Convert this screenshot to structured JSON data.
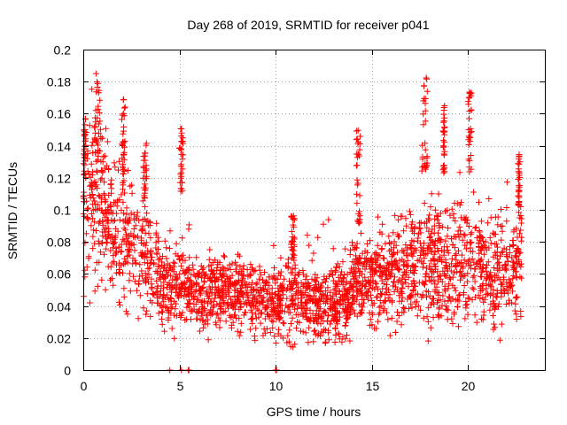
{
  "chart_data": {
    "type": "scatter",
    "title": "Day 268 of 2019, SRMTID for receiver p041",
    "xlabel": "GPS time / hours",
    "ylabel": "SRMTID / TECUs",
    "xlim": [
      0,
      24
    ],
    "ylim": [
      0,
      0.2
    ],
    "x_ticks": [
      0,
      5,
      10,
      15,
      20
    ],
    "x_tick_labels": [
      "0",
      "5",
      "10",
      "15",
      "20"
    ],
    "y_ticks": [
      0,
      0.02,
      0.04,
      0.06,
      0.08,
      0.1,
      0.12,
      0.14,
      0.16,
      0.18,
      0.2
    ],
    "y_tick_labels": [
      "0",
      "0.02",
      "0.04",
      "0.06",
      "0.08",
      "0.1",
      "0.12",
      "0.14",
      "0.16",
      "0.18",
      "0.2"
    ],
    "grid": true,
    "marker": "+",
    "color": "#ff0000",
    "trend": [
      {
        "t": 0.0,
        "mean": 0.1,
        "sd": 0.024
      },
      {
        "t": 0.5,
        "mean": 0.11,
        "sd": 0.024
      },
      {
        "t": 1.0,
        "mean": 0.1,
        "sd": 0.022
      },
      {
        "t": 1.5,
        "mean": 0.09,
        "sd": 0.02
      },
      {
        "t": 2.0,
        "mean": 0.085,
        "sd": 0.02
      },
      {
        "t": 2.5,
        "mean": 0.08,
        "sd": 0.018
      },
      {
        "t": 3.0,
        "mean": 0.07,
        "sd": 0.016
      },
      {
        "t": 3.5,
        "mean": 0.065,
        "sd": 0.016
      },
      {
        "t": 4.0,
        "mean": 0.055,
        "sd": 0.013
      },
      {
        "t": 4.5,
        "mean": 0.05,
        "sd": 0.013
      },
      {
        "t": 5.0,
        "mean": 0.055,
        "sd": 0.013
      },
      {
        "t": 5.5,
        "mean": 0.048,
        "sd": 0.011
      },
      {
        "t": 6.0,
        "mean": 0.046,
        "sd": 0.01
      },
      {
        "t": 7.0,
        "mean": 0.048,
        "sd": 0.011
      },
      {
        "t": 8.0,
        "mean": 0.048,
        "sd": 0.011
      },
      {
        "t": 9.0,
        "mean": 0.044,
        "sd": 0.011
      },
      {
        "t": 10.0,
        "mean": 0.042,
        "sd": 0.011
      },
      {
        "t": 11.0,
        "mean": 0.045,
        "sd": 0.012
      },
      {
        "t": 12.0,
        "mean": 0.04,
        "sd": 0.012
      },
      {
        "t": 13.0,
        "mean": 0.042,
        "sd": 0.012
      },
      {
        "t": 14.0,
        "mean": 0.052,
        "sd": 0.013
      },
      {
        "t": 15.0,
        "mean": 0.058,
        "sd": 0.013
      },
      {
        "t": 16.0,
        "mean": 0.058,
        "sd": 0.014
      },
      {
        "t": 17.0,
        "mean": 0.065,
        "sd": 0.016
      },
      {
        "t": 18.0,
        "mean": 0.068,
        "sd": 0.017
      },
      {
        "t": 19.0,
        "mean": 0.065,
        "sd": 0.017
      },
      {
        "t": 20.0,
        "mean": 0.07,
        "sd": 0.02
      },
      {
        "t": 21.0,
        "mean": 0.06,
        "sd": 0.016
      },
      {
        "t": 22.0,
        "mean": 0.063,
        "sd": 0.016
      },
      {
        "t": 22.8,
        "mean": 0.07,
        "sd": 0.018
      }
    ],
    "data_time_range": [
      0,
      22.8
    ],
    "sample_count": 2500,
    "bursts": [
      {
        "t_start": 0.0,
        "t_end": 0.15,
        "y_min": 0.12,
        "y_max": 0.157
      },
      {
        "t_start": 0.6,
        "t_end": 0.9,
        "y_min": 0.13,
        "y_max": 0.186
      },
      {
        "t_start": 2.0,
        "t_end": 2.2,
        "y_min": 0.12,
        "y_max": 0.171
      },
      {
        "t_start": 3.1,
        "t_end": 3.3,
        "y_min": 0.1,
        "y_max": 0.145
      },
      {
        "t_start": 5.0,
        "t_end": 5.2,
        "y_min": 0.11,
        "y_max": 0.153
      },
      {
        "t_start": 10.8,
        "t_end": 11.0,
        "y_min": 0.07,
        "y_max": 0.097
      },
      {
        "t_start": 14.2,
        "t_end": 14.4,
        "y_min": 0.09,
        "y_max": 0.15
      },
      {
        "t_start": 17.6,
        "t_end": 17.9,
        "y_min": 0.12,
        "y_max": 0.184
      },
      {
        "t_start": 18.7,
        "t_end": 18.8,
        "y_min": 0.12,
        "y_max": 0.166
      },
      {
        "t_start": 20.0,
        "t_end": 20.2,
        "y_min": 0.12,
        "y_max": 0.18
      },
      {
        "t_start": 22.6,
        "t_end": 22.7,
        "y_min": 0.1,
        "y_max": 0.137
      }
    ],
    "zero_points": [
      4.5,
      5.1,
      5.45,
      5.5,
      10.0,
      10.05
    ]
  }
}
